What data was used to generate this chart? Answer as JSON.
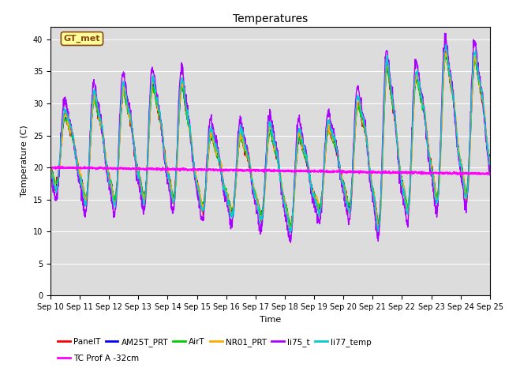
{
  "title": "Temperatures",
  "xlabel": "Time",
  "ylabel": "Temperature (C)",
  "ylim": [
    0,
    42
  ],
  "yticks": [
    0,
    5,
    10,
    15,
    20,
    25,
    30,
    35,
    40
  ],
  "bg_color": "#dcdcdc",
  "fig_color": "#ffffff",
  "series": {
    "PanelT": {
      "color": "#ff0000",
      "lw": 1.0
    },
    "AM25T_PRT": {
      "color": "#0000ff",
      "lw": 1.0
    },
    "AirT": {
      "color": "#00cc00",
      "lw": 1.0
    },
    "NR01_PRT": {
      "color": "#ffaa00",
      "lw": 1.0
    },
    "li75_t": {
      "color": "#aa00ff",
      "lw": 1.0
    },
    "li77_temp": {
      "color": "#00cccc",
      "lw": 1.0
    },
    "TC Prof A -32cm": {
      "color": "#ff00ff",
      "lw": 1.5
    }
  },
  "annotation_text": "GT_met",
  "x_tick_labels": [
    "Sep 10",
    "Sep 11",
    "Sep 12",
    "Sep 13",
    "Sep 14",
    "Sep 15",
    "Sep 16",
    "Sep 17",
    "Sep 18",
    "Sep 19",
    "Sep 20",
    "Sep 21",
    "Sep 22",
    "Sep 23",
    "Sep 24",
    "Sep 25"
  ],
  "day_highs": [
    28,
    31,
    32,
    33,
    33,
    25,
    25,
    26,
    25,
    26,
    30,
    36,
    34,
    38,
    37
  ],
  "day_lows": [
    17,
    14,
    15,
    15,
    15,
    13,
    13,
    12,
    10,
    15,
    13,
    10,
    15,
    15,
    16
  ],
  "num_points": 1500
}
